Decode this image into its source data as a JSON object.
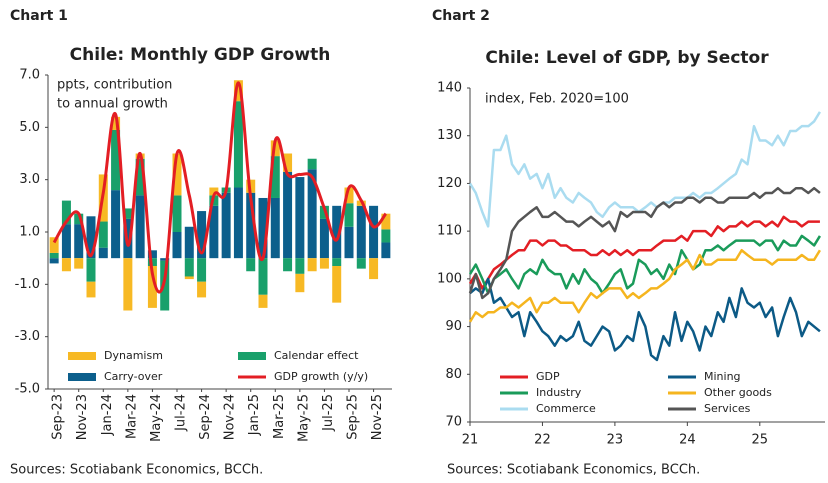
{
  "chart_data": [
    {
      "type": "bar",
      "label": "Chart 1",
      "title": "Chile: Monthly GDP Growth",
      "annotation": [
        "ppts, contribution",
        "to annual growth"
      ],
      "source": "Sources: Scotiabank Economics, BCCh.",
      "stacked": true,
      "legend": "lower left",
      "categories": [
        "Sep-23",
        null,
        "Nov-23",
        null,
        "Jan-24",
        null,
        "Mar-24",
        null,
        "May-24",
        null,
        "Jul-24",
        null,
        "Sep-24",
        null,
        "Nov-24",
        null,
        "Jan-25",
        null,
        "Mar-25",
        null,
        "May-25",
        null,
        "Jul-25",
        null,
        "Sep-25",
        null,
        "Nov-25",
        null
      ],
      "ylim": [
        -5,
        7
      ],
      "yticks": [
        {
          "value": 7,
          "label": "7.0"
        },
        {
          "value": 5,
          "label": "5.0"
        },
        {
          "value": 3,
          "label": "3.0"
        },
        {
          "value": 1,
          "label": "1.0"
        },
        {
          "value": -1,
          "label": "-1.0"
        },
        {
          "value": -3,
          "label": "-3.0"
        },
        {
          "value": -5,
          "label": "-5.0"
        }
      ],
      "series": [
        {
          "name": "Dynamism",
          "type": "bar",
          "color": "#f7b924",
          "values": [
            0.6,
            -0.5,
            -0.4,
            -0.6,
            1.8,
            0.5,
            -2.0,
            0.2,
            -1.6,
            0,
            1.6,
            -0.1,
            -0.6,
            0.3,
            0,
            0.8,
            0.5,
            -0.5,
            0.6,
            0.7,
            -0.7,
            -0.5,
            -0.4,
            -1.4,
            0.6,
            0.2,
            -0.8,
            0.6
          ]
        },
        {
          "name": "Calendar effect",
          "type": "bar",
          "color": "#19a06b",
          "values": [
            0.2,
            0.9,
            0.4,
            -0.9,
            1.0,
            2.3,
            0.4,
            1.4,
            -0.3,
            -1.9,
            1.4,
            -0.7,
            -0.9,
            0.4,
            0.2,
            3.3,
            -0.5,
            -1.4,
            1.6,
            -0.5,
            -0.6,
            0.4,
            0.5,
            -0.3,
            0.9,
            -0.4,
            0,
            0.5
          ]
        },
        {
          "name": "Carry-over",
          "type": "bar",
          "color": "#0c5f8c",
          "values": [
            -0.2,
            1.3,
            1.3,
            1.6,
            0.4,
            2.6,
            1.5,
            2.4,
            0.3,
            -0.1,
            1.0,
            1.2,
            1.8,
            2.0,
            2.5,
            2.7,
            2.5,
            2.3,
            2.3,
            3.3,
            3.1,
            3.4,
            1.5,
            2.0,
            1.2,
            2.0,
            2.0,
            0.6
          ]
        },
        {
          "name": "GDP growth (y/y)",
          "type": "line",
          "color": "#e31e24",
          "values": [
            0.6,
            1.4,
            1.7,
            0.1,
            2.5,
            5.5,
            0.5,
            4.0,
            -0.6,
            -0.8,
            4.0,
            2.4,
            0.2,
            2.4,
            2.6,
            6.7,
            2.3,
            0.0,
            4.5,
            3.2,
            3.2,
            3.1,
            1.9,
            0.7,
            2.7,
            2.2,
            1.2,
            1.7
          ]
        }
      ]
    },
    {
      "type": "line",
      "label": "Chart 2",
      "title": "Chile: Level of GDP, by Sector",
      "annotation": [
        "index, Feb. 2020=100"
      ],
      "source": "Sources: Scotiabank Economics, BCCh.",
      "legend": "lower left",
      "x": [
        2021,
        2021.08,
        2021.17,
        2021.25,
        2021.33,
        2021.42,
        2021.5,
        2021.58,
        2021.67,
        2021.75,
        2021.83,
        2021.92,
        2022,
        2022.08,
        2022.17,
        2022.25,
        2022.33,
        2022.42,
        2022.5,
        2022.58,
        2022.67,
        2022.75,
        2022.83,
        2022.92,
        2023,
        2023.08,
        2023.17,
        2023.25,
        2023.33,
        2023.42,
        2023.5,
        2023.58,
        2023.67,
        2023.75,
        2023.83,
        2023.92,
        2024,
        2024.08,
        2024.17,
        2024.25,
        2024.33,
        2024.42,
        2024.5,
        2024.58,
        2024.67,
        2024.75,
        2024.83,
        2024.92,
        2025,
        2025.08,
        2025.17,
        2025.25,
        2025.33,
        2025.42,
        2025.5,
        2025.58,
        2025.67,
        2025.75,
        2025.83
      ],
      "xlim": [
        2021,
        2025.9
      ],
      "xticks": [
        {
          "value": 2021,
          "label": "21"
        },
        {
          "value": 2022,
          "label": "22"
        },
        {
          "value": 2023,
          "label": "23"
        },
        {
          "value": 2024,
          "label": "24"
        },
        {
          "value": 2025,
          "label": "25"
        }
      ],
      "ylim": [
        70,
        140
      ],
      "yticks": [
        70,
        80,
        90,
        100,
        110,
        120,
        130,
        140
      ],
      "series": [
        {
          "name": "GDP",
          "color": "#e31e24",
          "values": [
            99,
            101,
            98,
            100,
            102,
            103,
            104,
            105,
            106,
            106,
            108,
            108,
            107,
            108,
            108,
            107,
            107,
            106,
            106,
            106,
            105,
            105,
            106,
            105,
            106,
            105,
            106,
            105,
            106,
            106,
            106,
            107,
            108,
            108,
            108,
            109,
            108,
            110,
            110,
            110,
            109,
            111,
            110,
            111,
            111,
            112,
            111,
            112,
            112,
            111,
            112,
            111,
            113,
            112,
            112,
            111,
            112,
            112,
            112
          ]
        },
        {
          "name": "Mining",
          "color": "#0c5a86",
          "values": [
            97,
            98,
            97,
            100,
            95,
            96,
            94,
            92,
            93,
            88,
            93,
            91,
            89,
            88,
            86,
            88,
            87,
            88,
            91,
            87,
            86,
            88,
            90,
            89,
            85,
            86,
            88,
            87,
            93,
            90,
            84,
            83,
            88,
            86,
            93,
            87,
            91,
            89,
            85,
            90,
            88,
            93,
            91,
            96,
            92,
            98,
            95,
            94,
            95,
            92,
            94,
            88,
            92,
            96,
            93,
            88,
            91,
            90,
            89
          ]
        },
        {
          "name": "Industry",
          "color": "#1a9b5a",
          "values": [
            101,
            103,
            100,
            97,
            100,
            101,
            102,
            100,
            98,
            101,
            102,
            101,
            104,
            102,
            101,
            101,
            98,
            101,
            99,
            102,
            100,
            99,
            97,
            99,
            101,
            102,
            98,
            99,
            104,
            103,
            101,
            102,
            100,
            103,
            101,
            106,
            104,
            102,
            103,
            106,
            106,
            107,
            106,
            107,
            108,
            108,
            108,
            108,
            107,
            108,
            108,
            106,
            108,
            107,
            107,
            109,
            108,
            107,
            109
          ]
        },
        {
          "name": "Other goods",
          "color": "#f5b51f",
          "values": [
            91,
            93,
            92,
            93,
            93,
            94,
            94,
            95,
            94,
            95,
            96,
            93,
            95,
            95,
            96,
            95,
            95,
            95,
            93,
            95,
            97,
            96,
            97,
            98,
            98,
            98,
            96,
            97,
            96,
            97,
            98,
            98,
            99,
            100,
            102,
            103,
            104,
            102,
            105,
            103,
            103,
            104,
            104,
            104,
            104,
            106,
            105,
            104,
            104,
            104,
            103,
            104,
            104,
            104,
            104,
            105,
            104,
            104,
            106
          ]
        },
        {
          "name": "Commerce",
          "color": "#aadcf0",
          "values": [
            120,
            118,
            114,
            111,
            127,
            127,
            130,
            124,
            122,
            124,
            121,
            122,
            119,
            122,
            117,
            119,
            117,
            116,
            118,
            117,
            116,
            114,
            113,
            115,
            116,
            115,
            115,
            115,
            114,
            115,
            116,
            115,
            116,
            116,
            117,
            117,
            117,
            118,
            117,
            118,
            118,
            119,
            120,
            121,
            122,
            125,
            124,
            132,
            129,
            129,
            128,
            130,
            128,
            131,
            131,
            132,
            132,
            133,
            135
          ]
        },
        {
          "name": "Services",
          "color": "#555555",
          "values": [
            97,
            101,
            96,
            97,
            100,
            102,
            104,
            110,
            112,
            113,
            114,
            115,
            113,
            113,
            114,
            113,
            112,
            112,
            111,
            112,
            113,
            112,
            111,
            112,
            110,
            114,
            113,
            114,
            114,
            114,
            113,
            115,
            116,
            115,
            116,
            116,
            117,
            117,
            116,
            117,
            117,
            116,
            116,
            117,
            117,
            117,
            117,
            118,
            117,
            118,
            118,
            119,
            118,
            118,
            119,
            119,
            118,
            119,
            118
          ]
        }
      ]
    }
  ]
}
